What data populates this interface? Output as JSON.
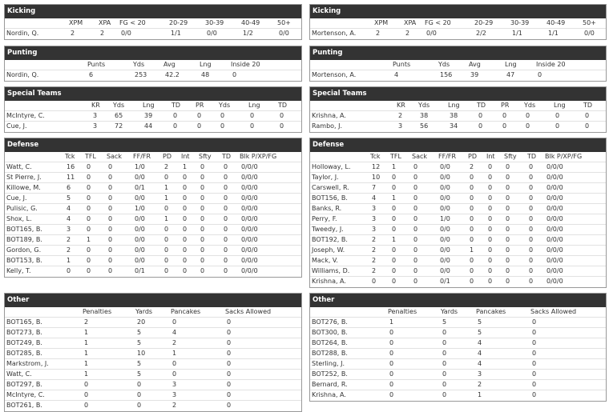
{
  "teams": [
    {
      "sections": [
        {
          "title": "Kicking",
          "columns": [
            "XPM",
            "XPA",
            "FG < 20",
            "20-29",
            "30-39",
            "40-49",
            "50+"
          ],
          "rows": [
            {
              "name": "Nordin, Q.",
              "cells": [
                "2",
                "2",
                "0/0",
                "1/1",
                "0/0",
                "1/2",
                "0/0"
              ]
            }
          ]
        },
        {
          "title": "Punting",
          "columns": [
            "Punts",
            "Yds",
            "Avg",
            "Lng",
            "Inside 20"
          ],
          "rows": [
            {
              "name": "Nordin, Q.",
              "cells": [
                "6",
                "253",
                "42.2",
                "48",
                "0"
              ]
            }
          ]
        },
        {
          "title": "Special Teams",
          "columns": [
            "KR",
            "Yds",
            "Lng",
            "TD",
            "PR",
            "Yds",
            "Lng",
            "TD"
          ],
          "rows": [
            {
              "name": "McIntyre, C.",
              "cells": [
                "3",
                "65",
                "39",
                "0",
                "0",
                "0",
                "0",
                "0"
              ]
            },
            {
              "name": "Cue, J.",
              "cells": [
                "3",
                "72",
                "44",
                "0",
                "0",
                "0",
                "0",
                "0"
              ]
            }
          ]
        },
        {
          "title": "Defense",
          "columns": [
            "Tck",
            "TFL",
            "Sack",
            "FF/FR",
            "PD",
            "Int",
            "Sfty",
            "TD",
            "Blk P/XP/FG"
          ],
          "rows": [
            {
              "name": "Watt, C.",
              "cells": [
                "16",
                "0",
                "0",
                "1/0",
                "2",
                "1",
                "0",
                "0",
                "0/0/0"
              ]
            },
            {
              "name": "St Pierre, J.",
              "cells": [
                "11",
                "0",
                "0",
                "0/0",
                "0",
                "0",
                "0",
                "0",
                "0/0/0"
              ]
            },
            {
              "name": "Killowe, M.",
              "cells": [
                "6",
                "0",
                "0",
                "0/1",
                "1",
                "0",
                "0",
                "0",
                "0/0/0"
              ]
            },
            {
              "name": "Cue, J.",
              "cells": [
                "5",
                "0",
                "0",
                "0/0",
                "1",
                "0",
                "0",
                "0",
                "0/0/0"
              ]
            },
            {
              "name": "Pulisic, G.",
              "cells": [
                "4",
                "0",
                "0",
                "1/0",
                "0",
                "0",
                "0",
                "0",
                "0/0/0"
              ]
            },
            {
              "name": "Shox, L.",
              "cells": [
                "4",
                "0",
                "0",
                "0/0",
                "1",
                "0",
                "0",
                "0",
                "0/0/0"
              ]
            },
            {
              "name": "BOT165, B.",
              "cells": [
                "3",
                "0",
                "0",
                "0/0",
                "0",
                "0",
                "0",
                "0",
                "0/0/0"
              ]
            },
            {
              "name": "BOT189, B.",
              "cells": [
                "2",
                "1",
                "0",
                "0/0",
                "0",
                "0",
                "0",
                "0",
                "0/0/0"
              ]
            },
            {
              "name": "Gordon, G.",
              "cells": [
                "2",
                "0",
                "0",
                "0/0",
                "0",
                "0",
                "0",
                "0",
                "0/0/0"
              ]
            },
            {
              "name": "BOT153, B.",
              "cells": [
                "1",
                "0",
                "0",
                "0/0",
                "0",
                "0",
                "0",
                "0",
                "0/0/0"
              ]
            },
            {
              "name": "Kelly, T.",
              "cells": [
                "0",
                "0",
                "0",
                "0/1",
                "0",
                "0",
                "0",
                "0",
                "0/0/0"
              ]
            }
          ]
        },
        {
          "title": "Other",
          "columns": [
            "Penalties",
            "Yards",
            "Pancakes",
            "Sacks Allowed"
          ],
          "rows": [
            {
              "name": "BOT165, B.",
              "cells": [
                "2",
                "20",
                "0",
                "0"
              ]
            },
            {
              "name": "BOT273, B.",
              "cells": [
                "1",
                "5",
                "4",
                "0"
              ]
            },
            {
              "name": "BOT249, B.",
              "cells": [
                "1",
                "5",
                "2",
                "0"
              ]
            },
            {
              "name": "BOT285, B.",
              "cells": [
                "1",
                "10",
                "1",
                "0"
              ]
            },
            {
              "name": "Markstrom, J.",
              "cells": [
                "1",
                "5",
                "0",
                "0"
              ]
            },
            {
              "name": "Watt, C.",
              "cells": [
                "1",
                "5",
                "0",
                "0"
              ]
            },
            {
              "name": "BOT297, B.",
              "cells": [
                "0",
                "0",
                "3",
                "0"
              ]
            },
            {
              "name": "McIntyre, C.",
              "cells": [
                "0",
                "0",
                "3",
                "0"
              ]
            },
            {
              "name": "BOT261, B.",
              "cells": [
                "0",
                "0",
                "2",
                "0"
              ]
            }
          ]
        }
      ]
    },
    {
      "sections": [
        {
          "title": "Kicking",
          "columns": [
            "XPM",
            "XPA",
            "FG < 20",
            "20-29",
            "30-39",
            "40-49",
            "50+"
          ],
          "rows": [
            {
              "name": "Mortenson, A.",
              "cells": [
                "2",
                "2",
                "0/0",
                "2/2",
                "1/1",
                "1/1",
                "0/0"
              ]
            }
          ]
        },
        {
          "title": "Punting",
          "columns": [
            "Punts",
            "Yds",
            "Avg",
            "Lng",
            "Inside 20"
          ],
          "rows": [
            {
              "name": "Mortenson, A.",
              "cells": [
                "4",
                "156",
                "39",
                "47",
                "0"
              ]
            }
          ]
        },
        {
          "title": "Special Teams",
          "columns": [
            "KR",
            "Yds",
            "Lng",
            "TD",
            "PR",
            "Yds",
            "Lng",
            "TD"
          ],
          "rows": [
            {
              "name": "Krishna, A.",
              "cells": [
                "2",
                "38",
                "38",
                "0",
                "0",
                "0",
                "0",
                "0"
              ]
            },
            {
              "name": "Rambo, J.",
              "cells": [
                "3",
                "56",
                "34",
                "0",
                "0",
                "0",
                "0",
                "0"
              ]
            }
          ]
        },
        {
          "title": "Defense",
          "columns": [
            "Tck",
            "TFL",
            "Sack",
            "FF/FR",
            "PD",
            "Int",
            "Sfty",
            "TD",
            "Blk P/XP/FG"
          ],
          "rows": [
            {
              "name": "Holloway, L.",
              "cells": [
                "12",
                "1",
                "0",
                "0/0",
                "2",
                "0",
                "0",
                "0",
                "0/0/0"
              ]
            },
            {
              "name": "Taylor, J.",
              "cells": [
                "10",
                "0",
                "0",
                "0/0",
                "0",
                "0",
                "0",
                "0",
                "0/0/0"
              ]
            },
            {
              "name": "Carswell, R.",
              "cells": [
                "7",
                "0",
                "0",
                "0/0",
                "0",
                "0",
                "0",
                "0",
                "0/0/0"
              ]
            },
            {
              "name": "BOT156, B.",
              "cells": [
                "4",
                "1",
                "0",
                "0/0",
                "0",
                "0",
                "0",
                "0",
                "0/0/0"
              ]
            },
            {
              "name": "Banks, R.",
              "cells": [
                "3",
                "0",
                "0",
                "0/0",
                "0",
                "0",
                "0",
                "0",
                "0/0/0"
              ]
            },
            {
              "name": "Perry, F.",
              "cells": [
                "3",
                "0",
                "0",
                "1/0",
                "0",
                "0",
                "0",
                "0",
                "0/0/0"
              ]
            },
            {
              "name": "Tweedy, J.",
              "cells": [
                "3",
                "0",
                "0",
                "0/0",
                "0",
                "0",
                "0",
                "0",
                "0/0/0"
              ]
            },
            {
              "name": "BOT192, B.",
              "cells": [
                "2",
                "1",
                "0",
                "0/0",
                "0",
                "0",
                "0",
                "0",
                "0/0/0"
              ]
            },
            {
              "name": "Joseph, W.",
              "cells": [
                "2",
                "0",
                "0",
                "0/0",
                "1",
                "0",
                "0",
                "0",
                "0/0/0"
              ]
            },
            {
              "name": "Mack, V.",
              "cells": [
                "2",
                "0",
                "0",
                "0/0",
                "0",
                "0",
                "0",
                "0",
                "0/0/0"
              ]
            },
            {
              "name": "Williams, D.",
              "cells": [
                "2",
                "0",
                "0",
                "0/0",
                "0",
                "0",
                "0",
                "0",
                "0/0/0"
              ]
            },
            {
              "name": "Krishna, A.",
              "cells": [
                "0",
                "0",
                "0",
                "0/1",
                "0",
                "0",
                "0",
                "0",
                "0/0/0"
              ]
            }
          ]
        },
        {
          "title": "Other",
          "columns": [
            "Penalties",
            "Yards",
            "Pancakes",
            "Sacks Allowed"
          ],
          "rows": [
            {
              "name": "BOT276, B.",
              "cells": [
                "1",
                "5",
                "5",
                "0"
              ]
            },
            {
              "name": "BOT300, B.",
              "cells": [
                "0",
                "0",
                "5",
                "0"
              ]
            },
            {
              "name": "BOT264, B.",
              "cells": [
                "0",
                "0",
                "4",
                "0"
              ]
            },
            {
              "name": "BOT288, B.",
              "cells": [
                "0",
                "0",
                "4",
                "0"
              ]
            },
            {
              "name": "Sterling, J.",
              "cells": [
                "0",
                "0",
                "4",
                "0"
              ]
            },
            {
              "name": "BOT252, B.",
              "cells": [
                "0",
                "0",
                "3",
                "0"
              ]
            },
            {
              "name": "Bernard, R.",
              "cells": [
                "0",
                "0",
                "2",
                "0"
              ]
            },
            {
              "name": "Krishna, A.",
              "cells": [
                "0",
                "0",
                "1",
                "0"
              ]
            }
          ]
        }
      ]
    }
  ]
}
